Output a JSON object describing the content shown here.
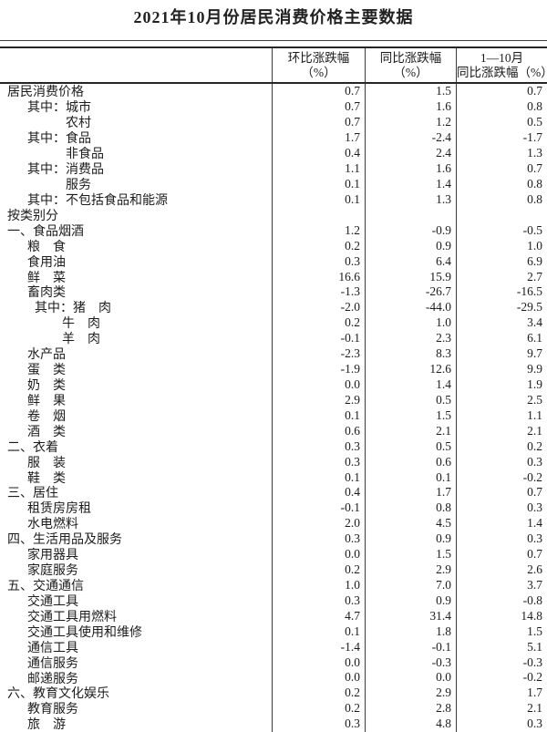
{
  "page": {
    "title": "2021年10月份居民消费价格主要数据"
  },
  "table": {
    "header": {
      "col_mom_line1": "环比涨跌幅",
      "col_mom_line2": "（%）",
      "col_yoy_line1": "同比涨跌幅",
      "col_yoy_line2": "（%）",
      "col_ytd_line1": "1—10月",
      "col_ytd_line2": "同比涨跌幅（%）"
    },
    "rows": [
      {
        "label": "居民消费价格",
        "indent": 0,
        "values": [
          "0.7",
          "1.5",
          "0.7"
        ]
      },
      {
        "label": "其中：城市",
        "indent": 1,
        "values": [
          "0.7",
          "1.6",
          "0.8"
        ]
      },
      {
        "label": "农村",
        "indent": 2,
        "values": [
          "0.7",
          "1.2",
          "0.5"
        ]
      },
      {
        "label": "其中：食品",
        "indent": 1,
        "values": [
          "1.7",
          "-2.4",
          "-1.7"
        ]
      },
      {
        "label": "非食品",
        "indent": 2,
        "values": [
          "0.4",
          "2.4",
          "1.3"
        ]
      },
      {
        "label": "其中：消费品",
        "indent": 1,
        "values": [
          "1.1",
          "1.6",
          "0.7"
        ]
      },
      {
        "label": "服务",
        "indent": 2,
        "values": [
          "0.1",
          "1.4",
          "0.8"
        ]
      },
      {
        "label": "其中：不包括食品和能源",
        "indent": 1,
        "values": [
          "0.1",
          "1.3",
          "0.8"
        ]
      },
      {
        "label": "按类别分",
        "indent": 0,
        "values": [
          "",
          "",
          ""
        ]
      },
      {
        "label": "一、食品烟酒",
        "indent": 0,
        "values": [
          "1.2",
          "-0.9",
          "-0.5"
        ]
      },
      {
        "label": "粮　食",
        "indent": 1,
        "values": [
          "0.2",
          "0.9",
          "1.0"
        ]
      },
      {
        "label": "食用油",
        "indent": 1,
        "values": [
          "0.3",
          "6.4",
          "6.9"
        ]
      },
      {
        "label": "鲜　菜",
        "indent": 1,
        "values": [
          "16.6",
          "15.9",
          "2.7"
        ]
      },
      {
        "label": "畜肉类",
        "indent": 1,
        "values": [
          "-1.3",
          "-26.7",
          "-16.5"
        ]
      },
      {
        "label": "其中：猪　肉",
        "indent": 3,
        "values": [
          "-2.0",
          "-44.0",
          "-29.5"
        ]
      },
      {
        "label": "牛　肉",
        "indent": 4,
        "values": [
          "0.2",
          "1.0",
          "3.4"
        ]
      },
      {
        "label": "羊　肉",
        "indent": 4,
        "values": [
          "-0.1",
          "2.3",
          "6.1"
        ]
      },
      {
        "label": "水产品",
        "indent": 1,
        "values": [
          "-2.3",
          "8.3",
          "9.7"
        ]
      },
      {
        "label": "蛋　类",
        "indent": 1,
        "values": [
          "-1.9",
          "12.6",
          "9.9"
        ]
      },
      {
        "label": "奶　类",
        "indent": 1,
        "values": [
          "0.0",
          "1.4",
          "1.9"
        ]
      },
      {
        "label": "鲜　果",
        "indent": 1,
        "values": [
          "2.9",
          "0.5",
          "2.5"
        ]
      },
      {
        "label": "卷　烟",
        "indent": 1,
        "values": [
          "0.1",
          "1.5",
          "1.1"
        ]
      },
      {
        "label": "酒　类",
        "indent": 1,
        "values": [
          "0.6",
          "2.1",
          "2.1"
        ]
      },
      {
        "label": "二、衣着",
        "indent": 0,
        "values": [
          "0.3",
          "0.5",
          "0.2"
        ]
      },
      {
        "label": "服　装",
        "indent": 1,
        "values": [
          "0.3",
          "0.6",
          "0.3"
        ]
      },
      {
        "label": "鞋　类",
        "indent": 1,
        "values": [
          "0.1",
          "0.1",
          "-0.2"
        ]
      },
      {
        "label": "三、居住",
        "indent": 0,
        "values": [
          "0.4",
          "1.7",
          "0.7"
        ]
      },
      {
        "label": "租赁房房租",
        "indent": 1,
        "values": [
          "-0.1",
          "0.8",
          "0.3"
        ]
      },
      {
        "label": "水电燃料",
        "indent": 1,
        "values": [
          "2.0",
          "4.5",
          "1.4"
        ]
      },
      {
        "label": "四、生活用品及服务",
        "indent": 0,
        "values": [
          "0.3",
          "0.9",
          "0.3"
        ]
      },
      {
        "label": "家用器具",
        "indent": 1,
        "values": [
          "0.0",
          "1.5",
          "0.7"
        ]
      },
      {
        "label": "家庭服务",
        "indent": 1,
        "values": [
          "0.2",
          "2.9",
          "2.6"
        ]
      },
      {
        "label": "五、交通通信",
        "indent": 0,
        "values": [
          "1.0",
          "7.0",
          "3.7"
        ]
      },
      {
        "label": "交通工具",
        "indent": 1,
        "values": [
          "0.3",
          "0.9",
          "-0.8"
        ]
      },
      {
        "label": "交通工具用燃料",
        "indent": 1,
        "values": [
          "4.7",
          "31.4",
          "14.8"
        ]
      },
      {
        "label": "交通工具使用和维修",
        "indent": 1,
        "values": [
          "0.1",
          "1.8",
          "1.5"
        ]
      },
      {
        "label": "通信工具",
        "indent": 1,
        "values": [
          "-1.4",
          "-0.1",
          "5.1"
        ]
      },
      {
        "label": "通信服务",
        "indent": 1,
        "values": [
          "0.0",
          "-0.3",
          "-0.3"
        ]
      },
      {
        "label": "邮递服务",
        "indent": 1,
        "values": [
          "0.0",
          "0.0",
          "-0.2"
        ]
      },
      {
        "label": "六、教育文化娱乐",
        "indent": 0,
        "values": [
          "0.2",
          "2.9",
          "1.7"
        ]
      },
      {
        "label": "教育服务",
        "indent": 1,
        "values": [
          "0.2",
          "2.8",
          "2.1"
        ]
      },
      {
        "label": "旅　游",
        "indent": 1,
        "values": [
          "0.3",
          "4.8",
          "0.3"
        ]
      }
    ]
  }
}
